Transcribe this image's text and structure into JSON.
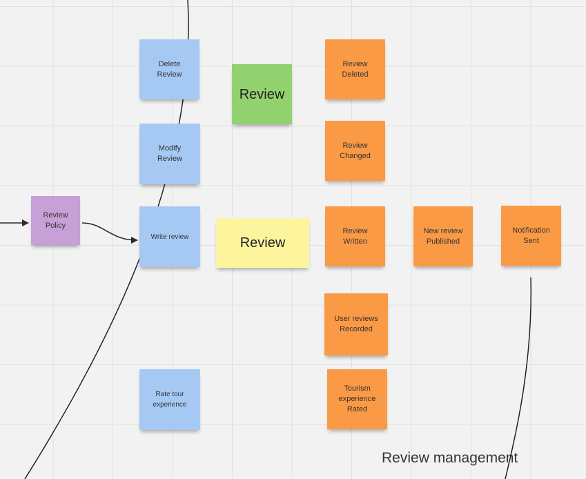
{
  "board": {
    "caption": "Review management",
    "notes": {
      "review_policy": "Review\nPolicy",
      "delete_review": "Delete\nReview",
      "modify_review": "Modify\nReview",
      "write_review": "Write review",
      "rate_tour": "Rate tour\nexperience",
      "review_aggregate": "Review",
      "review_readmodel": "Review",
      "review_deleted": "Review\nDeleted",
      "review_changed": "Review\nChanged",
      "review_written": "Review\nWritten",
      "new_review_published": "New review\nPublished",
      "notification_sent": "Notification\nSent",
      "user_reviews_recorded": "User reviews\nRecorded",
      "tourism_experience_rated": "Tourism\nexperience\nRated"
    },
    "colors": {
      "command": "#a6c9f4",
      "aggregate": "#92d26e",
      "event": "#fb9a45",
      "read_model": "#fdf59e",
      "policy": "#c7a0d8"
    }
  }
}
